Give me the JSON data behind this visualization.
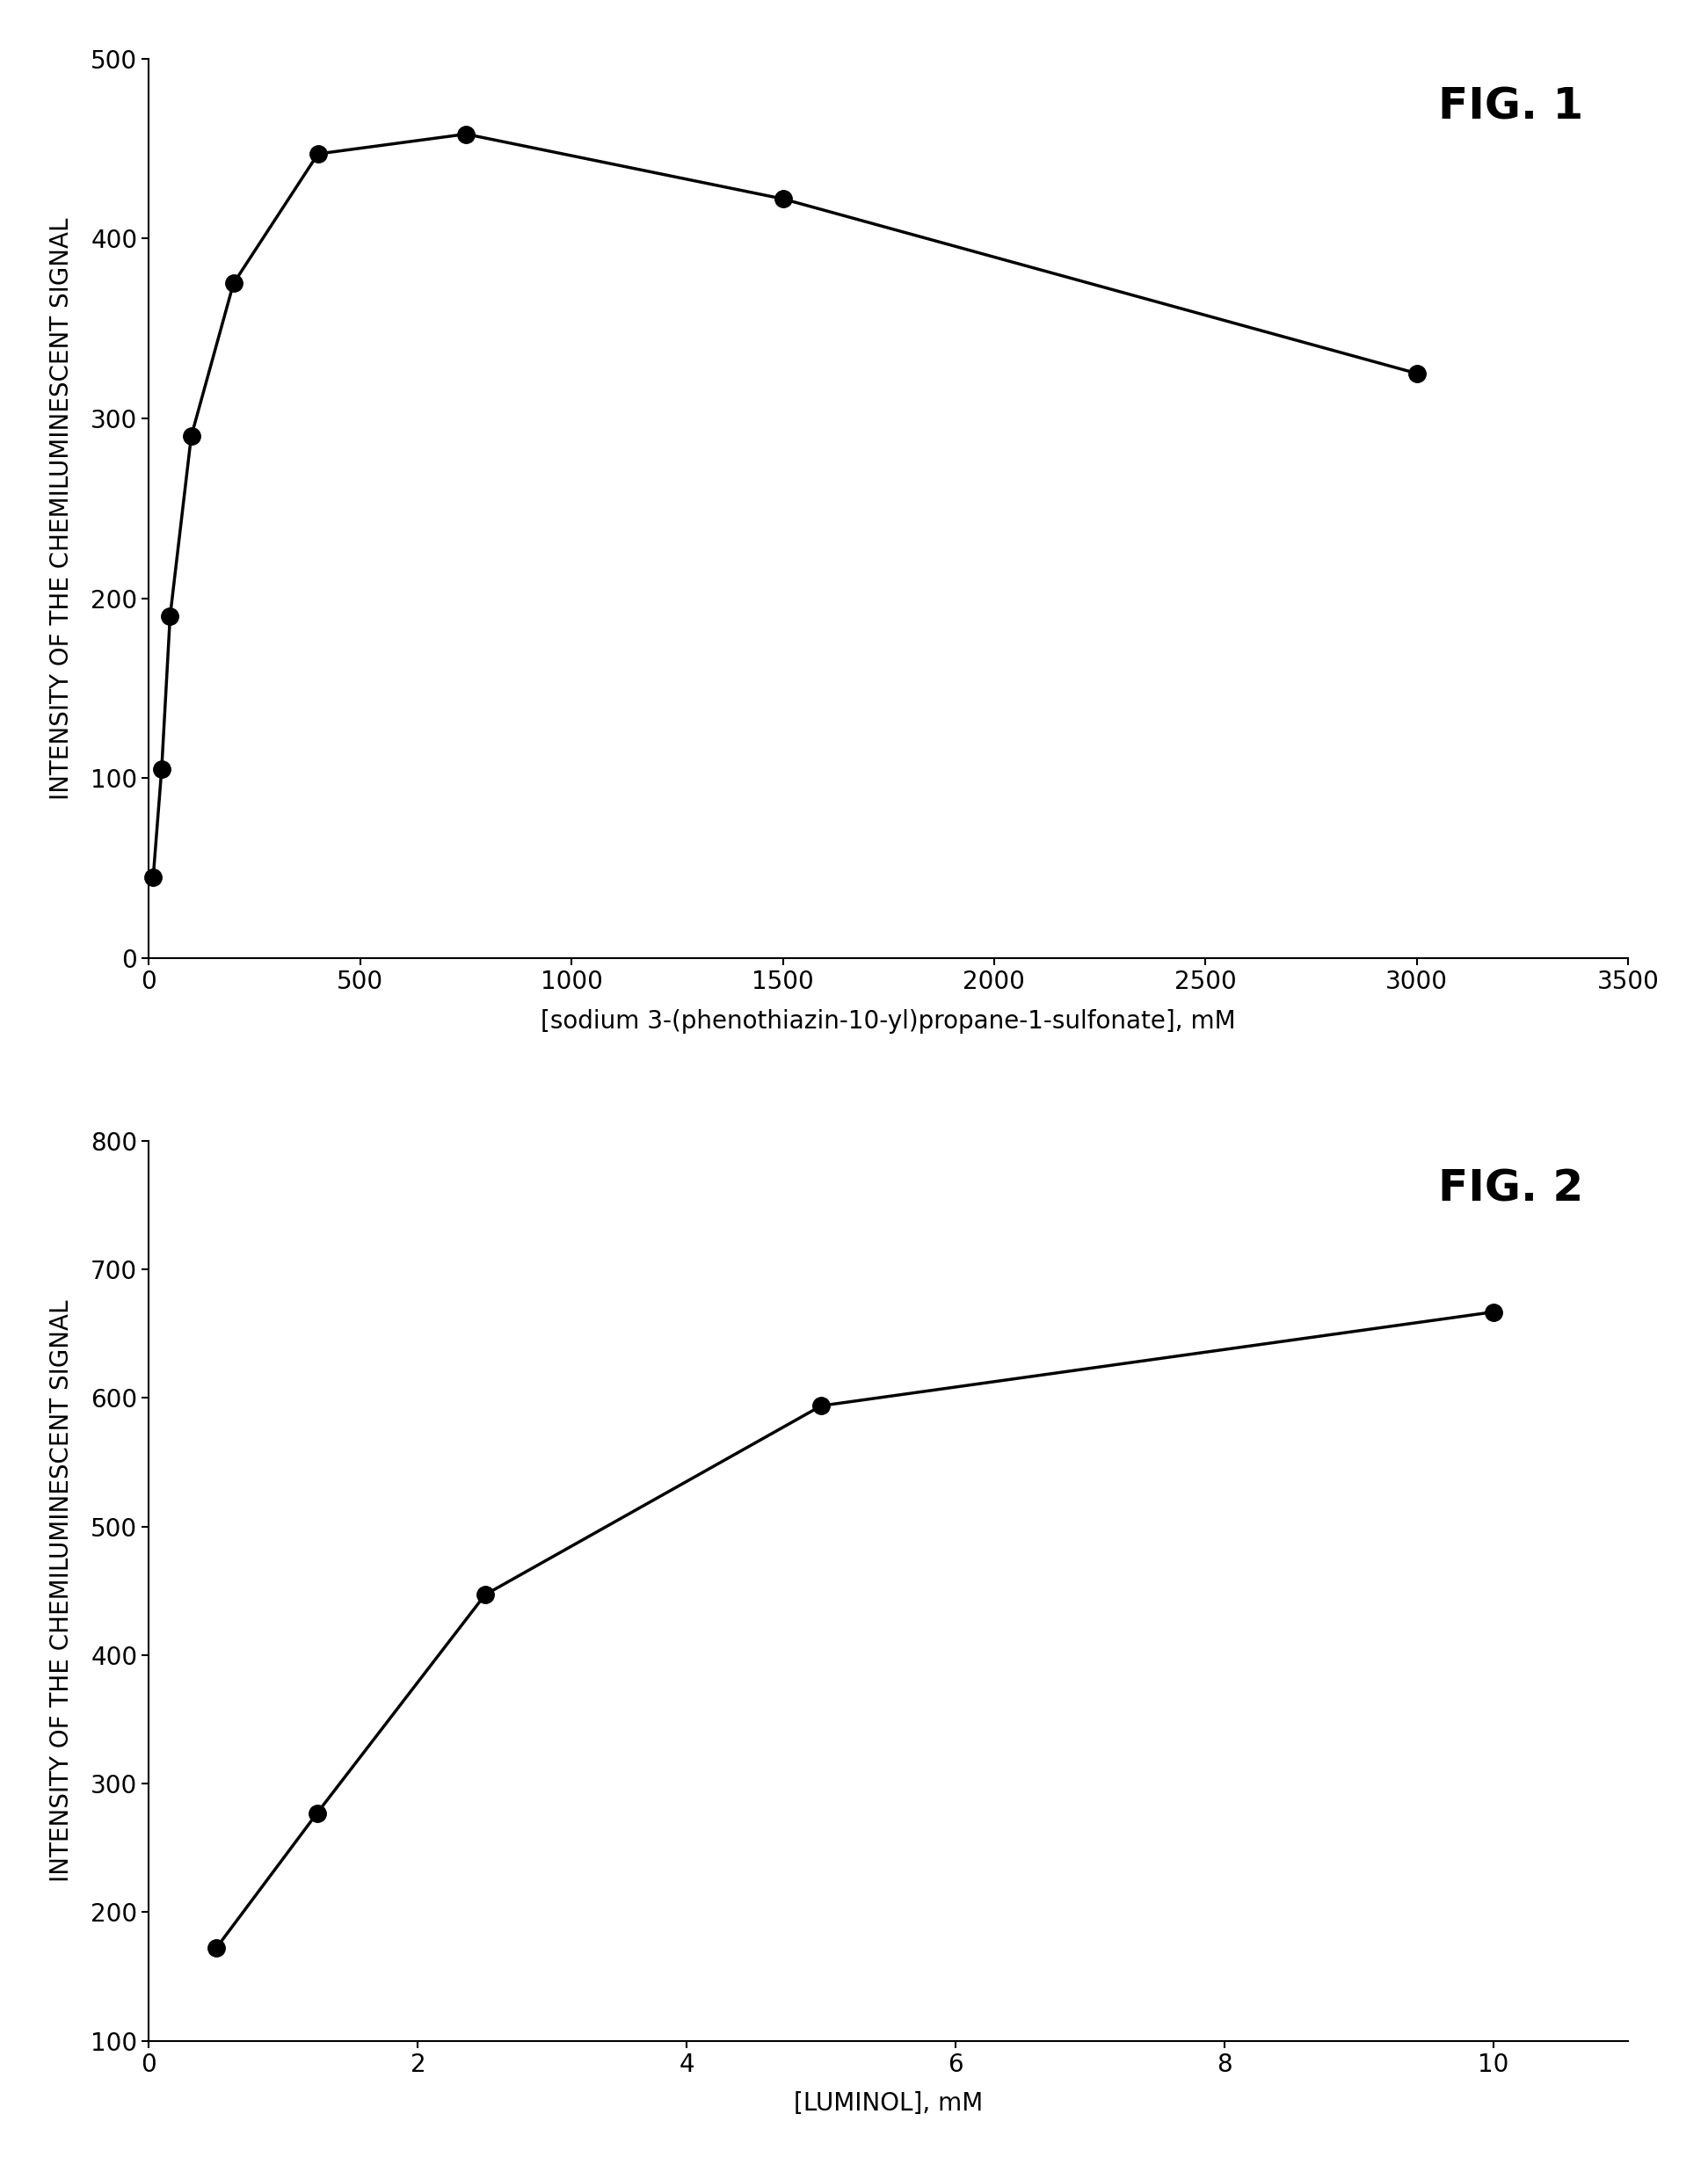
{
  "fig1": {
    "x": [
      10,
      30,
      50,
      100,
      200,
      400,
      750,
      1500,
      3000
    ],
    "y": [
      45,
      105,
      190,
      290,
      375,
      447,
      458,
      422,
      325
    ],
    "xlabel": "[sodium 3-(phenothiazin-10-yl)propane-1-sulfonate], mM",
    "ylabel": "INTENSITY OF THE CHEMILUMINESCENT SIGNAL",
    "title": "FIG. 1",
    "xlim": [
      0,
      3500
    ],
    "ylim": [
      0,
      500
    ],
    "xticks": [
      0,
      500,
      1000,
      1500,
      2000,
      2500,
      3000,
      3500
    ],
    "yticks": [
      0,
      100,
      200,
      300,
      400,
      500
    ]
  },
  "fig2": {
    "x": [
      0.5,
      1.25,
      2.5,
      5.0,
      10.0
    ],
    "y": [
      172,
      277,
      447,
      594,
      667
    ],
    "xlabel": "[LUMINOL], mM",
    "ylabel": "INTENSITY OF THE CHEMILUMINESCENT SIGNAL",
    "title": "FIG. 2",
    "xlim": [
      0,
      11
    ],
    "ylim": [
      100,
      800
    ],
    "xticks": [
      0,
      2,
      4,
      6,
      8,
      10
    ],
    "yticks": [
      100,
      200,
      300,
      400,
      500,
      600,
      700,
      800
    ]
  },
  "line_color": "#000000",
  "marker_color": "#000000",
  "marker_size": 14,
  "line_width": 2.5,
  "background_color": "#ffffff",
  "ylabel_fontsize": 20,
  "xlabel_fontsize": 20,
  "title_fontsize": 32,
  "tick_fontsize": 20,
  "fig_title_fontsize": 36
}
